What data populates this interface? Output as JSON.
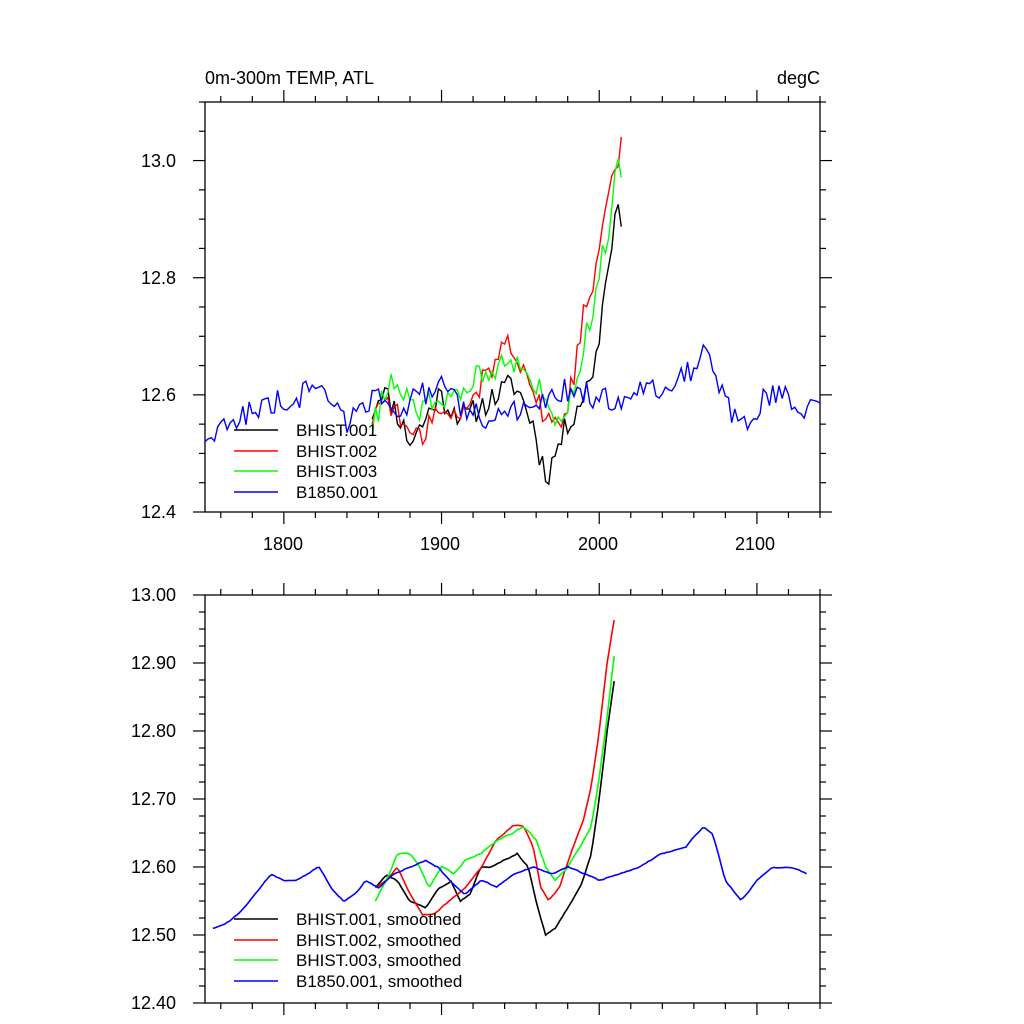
{
  "chart_data": [
    {
      "type": "line",
      "title": "0m-300m TEMP, ATL",
      "units": "degC",
      "xlim": [
        1750,
        2140
      ],
      "ylim": [
        12.4,
        13.1
      ],
      "x_ticks": [
        1800,
        1900,
        2000,
        2100
      ],
      "x_tick_labels": [
        "1800",
        "1900",
        "2000",
        "2100"
      ],
      "y_ticks": [
        12.4,
        12.6,
        12.8,
        13.0
      ],
      "y_tick_labels": [
        "12.4",
        "12.6",
        "12.8",
        "13.0"
      ],
      "legend_position": "lower-left",
      "series": [
        {
          "name": "BHIST.001",
          "color": "#000000",
          "anchors": [
            [
              1856,
              12.57
            ],
            [
              1862,
              12.61
            ],
            [
              1870,
              12.58
            ],
            [
              1880,
              12.52
            ],
            [
              1888,
              12.55
            ],
            [
              1898,
              12.6
            ],
            [
              1905,
              12.58
            ],
            [
              1915,
              12.56
            ],
            [
              1925,
              12.58
            ],
            [
              1935,
              12.6
            ],
            [
              1945,
              12.62
            ],
            [
              1950,
              12.6
            ],
            [
              1958,
              12.55
            ],
            [
              1962,
              12.5
            ],
            [
              1967,
              12.46
            ],
            [
              1972,
              12.5
            ],
            [
              1980,
              12.55
            ],
            [
              1990,
              12.6
            ],
            [
              1995,
              12.63
            ],
            [
              2000,
              12.7
            ],
            [
              2005,
              12.82
            ],
            [
              2010,
              12.9
            ],
            [
              2015,
              12.91
            ]
          ]
        },
        {
          "name": "BHIST.002",
          "color": "#ff0000",
          "anchors": [
            [
              1856,
              12.56
            ],
            [
              1865,
              12.6
            ],
            [
              1875,
              12.55
            ],
            [
              1885,
              12.52
            ],
            [
              1895,
              12.57
            ],
            [
              1905,
              12.56
            ],
            [
              1915,
              12.57
            ],
            [
              1925,
              12.62
            ],
            [
              1935,
              12.66
            ],
            [
              1942,
              12.7
            ],
            [
              1948,
              12.67
            ],
            [
              1955,
              12.63
            ],
            [
              1962,
              12.58
            ],
            [
              1970,
              12.55
            ],
            [
              1978,
              12.56
            ],
            [
              1985,
              12.65
            ],
            [
              1990,
              12.74
            ],
            [
              1997,
              12.8
            ],
            [
              2002,
              12.9
            ],
            [
              2007,
              12.98
            ],
            [
              2012,
              13.0
            ],
            [
              2015,
              13.05
            ]
          ]
        },
        {
          "name": "BHIST.003",
          "color": "#00ff00",
          "anchors": [
            [
              1856,
              12.54
            ],
            [
              1865,
              12.62
            ],
            [
              1875,
              12.6
            ],
            [
              1885,
              12.57
            ],
            [
              1895,
              12.6
            ],
            [
              1905,
              12.58
            ],
            [
              1915,
              12.61
            ],
            [
              1925,
              12.64
            ],
            [
              1935,
              12.65
            ],
            [
              1942,
              12.67
            ],
            [
              1948,
              12.65
            ],
            [
              1955,
              12.63
            ],
            [
              1962,
              12.61
            ],
            [
              1970,
              12.57
            ],
            [
              1978,
              12.57
            ],
            [
              1985,
              12.63
            ],
            [
              1990,
              12.68
            ],
            [
              1997,
              12.76
            ],
            [
              2002,
              12.84
            ],
            [
              2007,
              12.9
            ],
            [
              2012,
              13.0
            ],
            [
              2015,
              12.97
            ]
          ]
        },
        {
          "name": "B1850.001",
          "color": "#0000ff",
          "anchors": [
            [
              1750,
              12.53
            ],
            [
              1762,
              12.54
            ],
            [
              1775,
              12.57
            ],
            [
              1790,
              12.58
            ],
            [
              1800,
              12.59
            ],
            [
              1812,
              12.6
            ],
            [
              1822,
              12.63
            ],
            [
              1830,
              12.58
            ],
            [
              1842,
              12.55
            ],
            [
              1852,
              12.59
            ],
            [
              1862,
              12.6
            ],
            [
              1875,
              12.58
            ],
            [
              1888,
              12.6
            ],
            [
              1900,
              12.61
            ],
            [
              1912,
              12.58
            ],
            [
              1925,
              12.56
            ],
            [
              1938,
              12.57
            ],
            [
              1952,
              12.57
            ],
            [
              1968,
              12.59
            ],
            [
              1980,
              12.61
            ],
            [
              1992,
              12.6
            ],
            [
              2005,
              12.59
            ],
            [
              2018,
              12.6
            ],
            [
              2030,
              12.61
            ],
            [
              2045,
              12.62
            ],
            [
              2058,
              12.64
            ],
            [
              2066,
              12.68
            ],
            [
              2072,
              12.64
            ],
            [
              2080,
              12.58
            ],
            [
              2090,
              12.55
            ],
            [
              2100,
              12.58
            ],
            [
              2110,
              12.6
            ],
            [
              2120,
              12.59
            ],
            [
              2130,
              12.58
            ],
            [
              2140,
              12.6
            ]
          ]
        }
      ]
    },
    {
      "type": "line",
      "xlim": [
        1750,
        2140
      ],
      "ylim": [
        12.4,
        13.0
      ],
      "x_ticks": [
        1800,
        1900,
        2000,
        2100
      ],
      "y_ticks": [
        12.4,
        12.5,
        12.6,
        12.7,
        12.8,
        12.9,
        13.0
      ],
      "y_tick_labels": [
        "12.40",
        "12.50",
        "12.60",
        "12.70",
        "12.80",
        "12.90",
        "13.00"
      ],
      "legend_position": "lower-left",
      "series": [
        {
          "name": "BHIST.001, smoothed",
          "color": "#000000",
          "anchors": [
            [
              1858,
              12.57
            ],
            [
              1865,
              12.59
            ],
            [
              1872,
              12.58
            ],
            [
              1880,
              12.55
            ],
            [
              1890,
              12.54
            ],
            [
              1898,
              12.57
            ],
            [
              1906,
              12.58
            ],
            [
              1912,
              12.55
            ],
            [
              1918,
              12.56
            ],
            [
              1925,
              12.6
            ],
            [
              1932,
              12.6
            ],
            [
              1940,
              12.61
            ],
            [
              1948,
              12.62
            ],
            [
              1955,
              12.6
            ],
            [
              1960,
              12.55
            ],
            [
              1966,
              12.5
            ],
            [
              1972,
              12.51
            ],
            [
              1980,
              12.54
            ],
            [
              1988,
              12.57
            ],
            [
              1995,
              12.62
            ],
            [
              2000,
              12.7
            ],
            [
              2005,
              12.8
            ],
            [
              2010,
              12.88
            ]
          ]
        },
        {
          "name": "BHIST.002, smoothed",
          "color": "#ff0000",
          "anchors": [
            [
              1858,
              12.57
            ],
            [
              1865,
              12.58
            ],
            [
              1872,
              12.6
            ],
            [
              1880,
              12.56
            ],
            [
              1888,
              12.53
            ],
            [
              1895,
              12.53
            ],
            [
              1905,
              12.55
            ],
            [
              1915,
              12.57
            ],
            [
              1925,
              12.6
            ],
            [
              1935,
              12.64
            ],
            [
              1945,
              12.66
            ],
            [
              1952,
              12.66
            ],
            [
              1958,
              12.63
            ],
            [
              1963,
              12.57
            ],
            [
              1968,
              12.55
            ],
            [
              1975,
              12.57
            ],
            [
              1982,
              12.62
            ],
            [
              1990,
              12.67
            ],
            [
              1995,
              12.72
            ],
            [
              2000,
              12.8
            ],
            [
              2005,
              12.9
            ],
            [
              2010,
              12.97
            ]
          ]
        },
        {
          "name": "BHIST.003, smoothed",
          "color": "#00ff00",
          "anchors": [
            [
              1858,
              12.55
            ],
            [
              1865,
              12.58
            ],
            [
              1872,
              12.62
            ],
            [
              1880,
              12.62
            ],
            [
              1886,
              12.6
            ],
            [
              1892,
              12.57
            ],
            [
              1900,
              12.6
            ],
            [
              1908,
              12.59
            ],
            [
              1915,
              12.61
            ],
            [
              1925,
              12.62
            ],
            [
              1935,
              12.64
            ],
            [
              1945,
              12.65
            ],
            [
              1952,
              12.66
            ],
            [
              1960,
              12.64
            ],
            [
              1966,
              12.6
            ],
            [
              1972,
              12.58
            ],
            [
              1980,
              12.6
            ],
            [
              1988,
              12.63
            ],
            [
              1995,
              12.66
            ],
            [
              2000,
              12.73
            ],
            [
              2005,
              12.82
            ],
            [
              2010,
              12.92
            ]
          ]
        },
        {
          "name": "B1850.001, smoothed",
          "color": "#0000ff",
          "anchors": [
            [
              1755,
              12.51
            ],
            [
              1765,
              12.52
            ],
            [
              1775,
              12.54
            ],
            [
              1785,
              12.57
            ],
            [
              1792,
              12.59
            ],
            [
              1800,
              12.58
            ],
            [
              1808,
              12.58
            ],
            [
              1815,
              12.59
            ],
            [
              1822,
              12.6
            ],
            [
              1830,
              12.57
            ],
            [
              1838,
              12.55
            ],
            [
              1845,
              12.56
            ],
            [
              1852,
              12.58
            ],
            [
              1860,
              12.57
            ],
            [
              1870,
              12.59
            ],
            [
              1880,
              12.6
            ],
            [
              1890,
              12.61
            ],
            [
              1898,
              12.6
            ],
            [
              1905,
              12.58
            ],
            [
              1915,
              12.56
            ],
            [
              1925,
              12.58
            ],
            [
              1935,
              12.57
            ],
            [
              1945,
              12.59
            ],
            [
              1958,
              12.6
            ],
            [
              1970,
              12.59
            ],
            [
              1980,
              12.6
            ],
            [
              1990,
              12.59
            ],
            [
              2000,
              12.58
            ],
            [
              2012,
              12.59
            ],
            [
              2025,
              12.6
            ],
            [
              2040,
              12.62
            ],
            [
              2055,
              12.63
            ],
            [
              2066,
              12.66
            ],
            [
              2072,
              12.65
            ],
            [
              2080,
              12.58
            ],
            [
              2090,
              12.55
            ],
            [
              2100,
              12.58
            ],
            [
              2110,
              12.6
            ],
            [
              2120,
              12.6
            ],
            [
              2132,
              12.59
            ]
          ]
        }
      ]
    }
  ]
}
